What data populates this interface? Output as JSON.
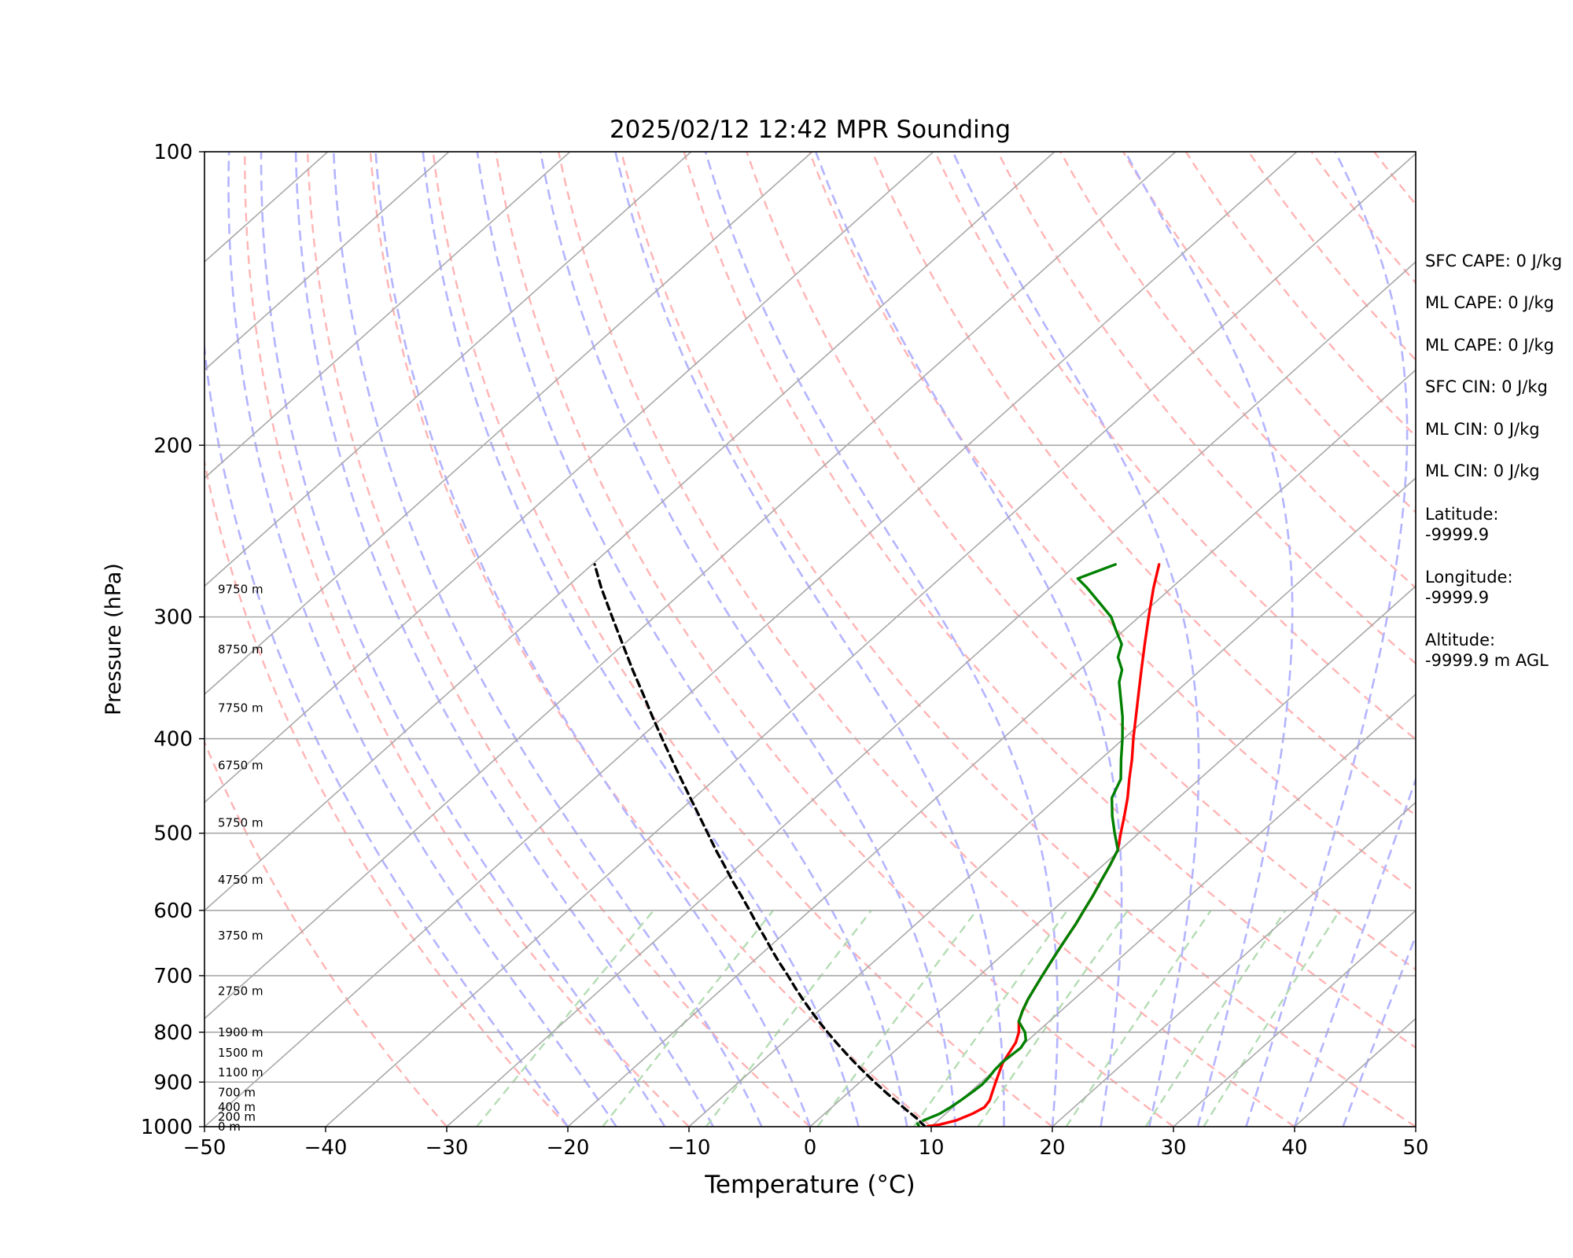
{
  "chart_data": {
    "type": "line",
    "title": "2025/02/12 12:42 MPR Sounding",
    "xlabel": "Temperature (°C)",
    "ylabel": "Pressure (hPa)",
    "xlim": [
      -50,
      50
    ],
    "ylim": [
      1000,
      100
    ],
    "y_scale": "log",
    "x_ticks": [
      "−50",
      "−40",
      "−30",
      "−20",
      "−10",
      "0",
      "10",
      "20",
      "30",
      "40",
      "50"
    ],
    "y_ticks": [
      "100",
      "200",
      "300",
      "400",
      "500",
      "600",
      "700",
      "800",
      "900",
      "1000"
    ],
    "height_labels": [
      {
        "p": 1000,
        "text": "0 m"
      },
      {
        "p": 977,
        "text": "200 m"
      },
      {
        "p": 955,
        "text": "400 m"
      },
      {
        "p": 922,
        "text": "700 m"
      },
      {
        "p": 880,
        "text": "1100 m"
      },
      {
        "p": 840,
        "text": "1500 m"
      },
      {
        "p": 800,
        "text": "1900 m"
      },
      {
        "p": 726,
        "text": "2750 m"
      },
      {
        "p": 637,
        "text": "3750 m"
      },
      {
        "p": 558,
        "text": "4750 m"
      },
      {
        "p": 488,
        "text": "5750 m"
      },
      {
        "p": 426,
        "text": "6750 m"
      },
      {
        "p": 372,
        "text": "7750 m"
      },
      {
        "p": 324,
        "text": "8750 m"
      },
      {
        "p": 281,
        "text": "9750 m"
      }
    ],
    "series": [
      {
        "color": "#ff0000",
        "points": [
          [
            1000,
            9.5
          ],
          [
            995,
            10.5
          ],
          [
            985,
            11.5
          ],
          [
            970,
            12.2
          ],
          [
            955,
            12.6
          ],
          [
            940,
            12.4
          ],
          [
            920,
            11.8
          ],
          [
            900,
            11.2
          ],
          [
            880,
            10.6
          ],
          [
            860,
            10.0
          ],
          [
            840,
            9.6
          ],
          [
            820,
            9.2
          ],
          [
            800,
            8.5
          ],
          [
            780,
            7.5
          ],
          [
            760,
            6.8
          ],
          [
            740,
            6.2
          ],
          [
            720,
            5.7
          ],
          [
            700,
            5.2
          ],
          [
            680,
            4.7
          ],
          [
            660,
            4.2
          ],
          [
            640,
            3.7
          ],
          [
            620,
            3.2
          ],
          [
            600,
            2.6
          ],
          [
            580,
            2.0
          ],
          [
            560,
            1.3
          ],
          [
            540,
            0.6
          ],
          [
            520,
            -0.2
          ],
          [
            500,
            -1.5
          ],
          [
            480,
            -2.8
          ],
          [
            460,
            -4.2
          ],
          [
            440,
            -5.8
          ],
          [
            420,
            -7.4
          ],
          [
            400,
            -9.2
          ],
          [
            380,
            -11.0
          ],
          [
            360,
            -12.9
          ],
          [
            340,
            -14.9
          ],
          [
            320,
            -17.0
          ],
          [
            300,
            -19.2
          ],
          [
            280,
            -21.5
          ],
          [
            265,
            -23.2
          ]
        ]
      },
      {
        "color": "#008000",
        "points": [
          [
            1000,
            9.0
          ],
          [
            993,
            8.6
          ],
          [
            985,
            8.8
          ],
          [
            970,
            9.5
          ],
          [
            955,
            9.8
          ],
          [
            940,
            10.0
          ],
          [
            920,
            10.2
          ],
          [
            905,
            10.3
          ],
          [
            890,
            10.2
          ],
          [
            875,
            10.0
          ],
          [
            860,
            9.9
          ],
          [
            845,
            10.0
          ],
          [
            830,
            10.1
          ],
          [
            815,
            9.8
          ],
          [
            800,
            9.0
          ],
          [
            780,
            7.5
          ],
          [
            760,
            6.8
          ],
          [
            740,
            6.2
          ],
          [
            720,
            5.7
          ],
          [
            700,
            5.2
          ],
          [
            680,
            4.7
          ],
          [
            660,
            4.2
          ],
          [
            640,
            3.7
          ],
          [
            620,
            3.2
          ],
          [
            600,
            2.6
          ],
          [
            580,
            2.0
          ],
          [
            560,
            1.3
          ],
          [
            540,
            0.6
          ],
          [
            520,
            -0.2
          ],
          [
            500,
            -2.0
          ],
          [
            480,
            -3.8
          ],
          [
            460,
            -5.5
          ],
          [
            440,
            -6.5
          ],
          [
            420,
            -8.3
          ],
          [
            400,
            -10.1
          ],
          [
            380,
            -12.1
          ],
          [
            360,
            -14.4
          ],
          [
            350,
            -15.6
          ],
          [
            340,
            -16.5
          ],
          [
            330,
            -18.0
          ],
          [
            320,
            -18.9
          ],
          [
            310,
            -20.6
          ],
          [
            300,
            -22.3
          ],
          [
            290,
            -24.6
          ],
          [
            280,
            -27.0
          ],
          [
            274,
            -28.6
          ],
          [
            265,
            -26.8
          ]
        ]
      },
      {
        "color": "#000000",
        "dashed": true,
        "points": [
          [
            1000,
            9.5
          ],
          [
            980,
            8.0
          ],
          [
            960,
            6.3
          ],
          [
            940,
            4.6
          ],
          [
            920,
            2.9
          ],
          [
            900,
            1.2
          ],
          [
            880,
            -0.5
          ],
          [
            860,
            -2.2
          ],
          [
            840,
            -3.9
          ],
          [
            820,
            -5.6
          ],
          [
            800,
            -7.3
          ],
          [
            780,
            -9.0
          ],
          [
            760,
            -10.7
          ],
          [
            740,
            -12.4
          ],
          [
            720,
            -14.1
          ],
          [
            700,
            -15.8
          ],
          [
            680,
            -17.6
          ],
          [
            660,
            -19.4
          ],
          [
            640,
            -21.2
          ],
          [
            620,
            -23.1
          ],
          [
            600,
            -25.0
          ],
          [
            580,
            -27.0
          ],
          [
            560,
            -29.1
          ],
          [
            540,
            -31.2
          ],
          [
            520,
            -33.4
          ],
          [
            500,
            -35.6
          ],
          [
            480,
            -37.9
          ],
          [
            460,
            -40.3
          ],
          [
            440,
            -42.8
          ],
          [
            420,
            -45.4
          ],
          [
            400,
            -48.1
          ],
          [
            380,
            -50.9
          ],
          [
            360,
            -53.8
          ],
          [
            340,
            -56.9
          ],
          [
            320,
            -60.1
          ],
          [
            300,
            -63.5
          ],
          [
            280,
            -67.1
          ],
          [
            265,
            -69.8
          ]
        ]
      }
    ],
    "background_lines": {
      "isotherms": {
        "color": "#a9a9a9",
        "t_min": -130,
        "t_max": 50,
        "step": 10
      },
      "dry_adiabats": {
        "color": "#ffb4b4",
        "dashed": true
      },
      "moist_adiabats": {
        "color": "#b4b4ff",
        "dashed": true
      },
      "mixing_ratio_lines": {
        "color": "#b4dcb4",
        "dashed": true,
        "top_pressure": 600,
        "values": [
          0.4,
          1,
          2,
          4,
          7,
          10,
          16,
          24,
          32
        ]
      }
    }
  },
  "info": {
    "sfc_cape_label": "SFC CAPE: 0 J/kg",
    "ml_cape_label_1": "ML CAPE: 0 J/kg",
    "ml_cape_label_2": "ML CAPE: 0 J/kg",
    "sfc_cin_label": "SFC CIN: 0 J/kg",
    "ml_cin_label_1": "ML CIN: 0 J/kg",
    "ml_cin_label_2": "ML CIN: 0 J/kg",
    "latitude_label": "Latitude:",
    "latitude_value": "-9999.9",
    "longitude_label": "Longitude:",
    "longitude_value": "-9999.9",
    "altitude_label": "Altitude:",
    "altitude_value": "-9999.9 m AGL"
  }
}
